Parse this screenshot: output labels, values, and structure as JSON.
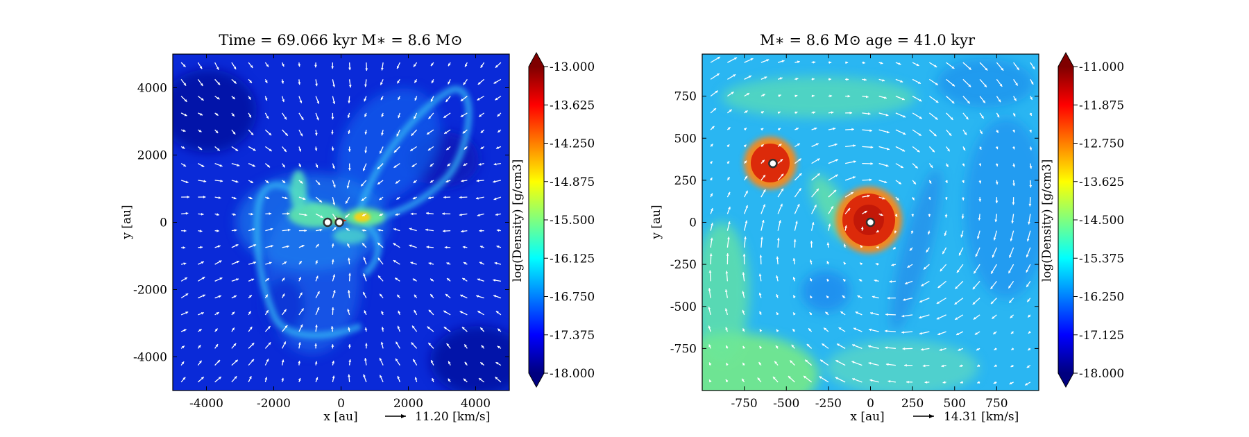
{
  "chart_data": [
    {
      "type": "heatmap",
      "title": "Time = 69.066 kyr    M∗ = 8.6 M⊙",
      "xlabel": "x [au]",
      "ylabel": "y [au]",
      "xlim": [
        -5000,
        5000
      ],
      "ylim": [
        -5000,
        5000
      ],
      "xticks": [
        -4000,
        -2000,
        0,
        2000,
        4000
      ],
      "yticks": [
        -4000,
        -2000,
        0,
        2000,
        4000
      ],
      "x_tick_labels": [
        "-4000",
        "-2000",
        "0",
        "2000",
        "4000"
      ],
      "y_tick_labels": [
        "-4000",
        "-2000",
        "0",
        "2000",
        "4000"
      ],
      "colorbar": {
        "label": "log(Density) [g/cm3]",
        "range": [
          -18.0,
          -13.0
        ],
        "ticks": [
          -13.0,
          -13.625,
          -14.25,
          -14.875,
          -15.5,
          -16.125,
          -16.75,
          -17.375,
          -18.0
        ],
        "tick_labels": [
          "-13.000",
          "-13.625",
          "-14.250",
          "-14.875",
          "-15.500",
          "-16.125",
          "-16.750",
          "-17.375",
          "-18.000"
        ]
      },
      "velocity_key": {
        "value": 11.2,
        "label": "11.20 [km/s]"
      },
      "stars": [
        {
          "x": -400,
          "y": 0
        },
        {
          "x": -50,
          "y": 0
        }
      ]
    },
    {
      "type": "heatmap",
      "title": "M∗ = 8.6 M⊙          age = 41.0 kyr",
      "xlabel": "x [au]",
      "ylabel": "y [au]",
      "xlim": [
        -1000,
        1000
      ],
      "ylim": [
        -1000,
        1000
      ],
      "xticks": [
        -750,
        -500,
        -250,
        0,
        250,
        500,
        750
      ],
      "yticks": [
        -750,
        -500,
        -250,
        0,
        250,
        500,
        750
      ],
      "x_tick_labels": [
        "-750",
        "-500",
        "-250",
        "0",
        "250",
        "500",
        "750"
      ],
      "y_tick_labels": [
        "-750",
        "-500",
        "-250",
        "0",
        "250",
        "500",
        "750"
      ],
      "colorbar": {
        "label": "log(Density) [g/cm3]",
        "range": [
          -18.0,
          -11.0
        ],
        "ticks": [
          -11.0,
          -11.875,
          -12.75,
          -13.625,
          -14.5,
          -15.375,
          -16.25,
          -17.125,
          -18.0
        ],
        "tick_labels": [
          "-11.000",
          "-11.875",
          "-12.750",
          "-13.625",
          "-14.500",
          "-15.375",
          "-16.250",
          "-17.125",
          "-18.000"
        ]
      },
      "velocity_key": {
        "value": 14.31,
        "label": "14.31 [km/s]"
      },
      "stars": [
        {
          "x": -580,
          "y": 350
        },
        {
          "x": 0,
          "y": 0
        }
      ]
    }
  ]
}
